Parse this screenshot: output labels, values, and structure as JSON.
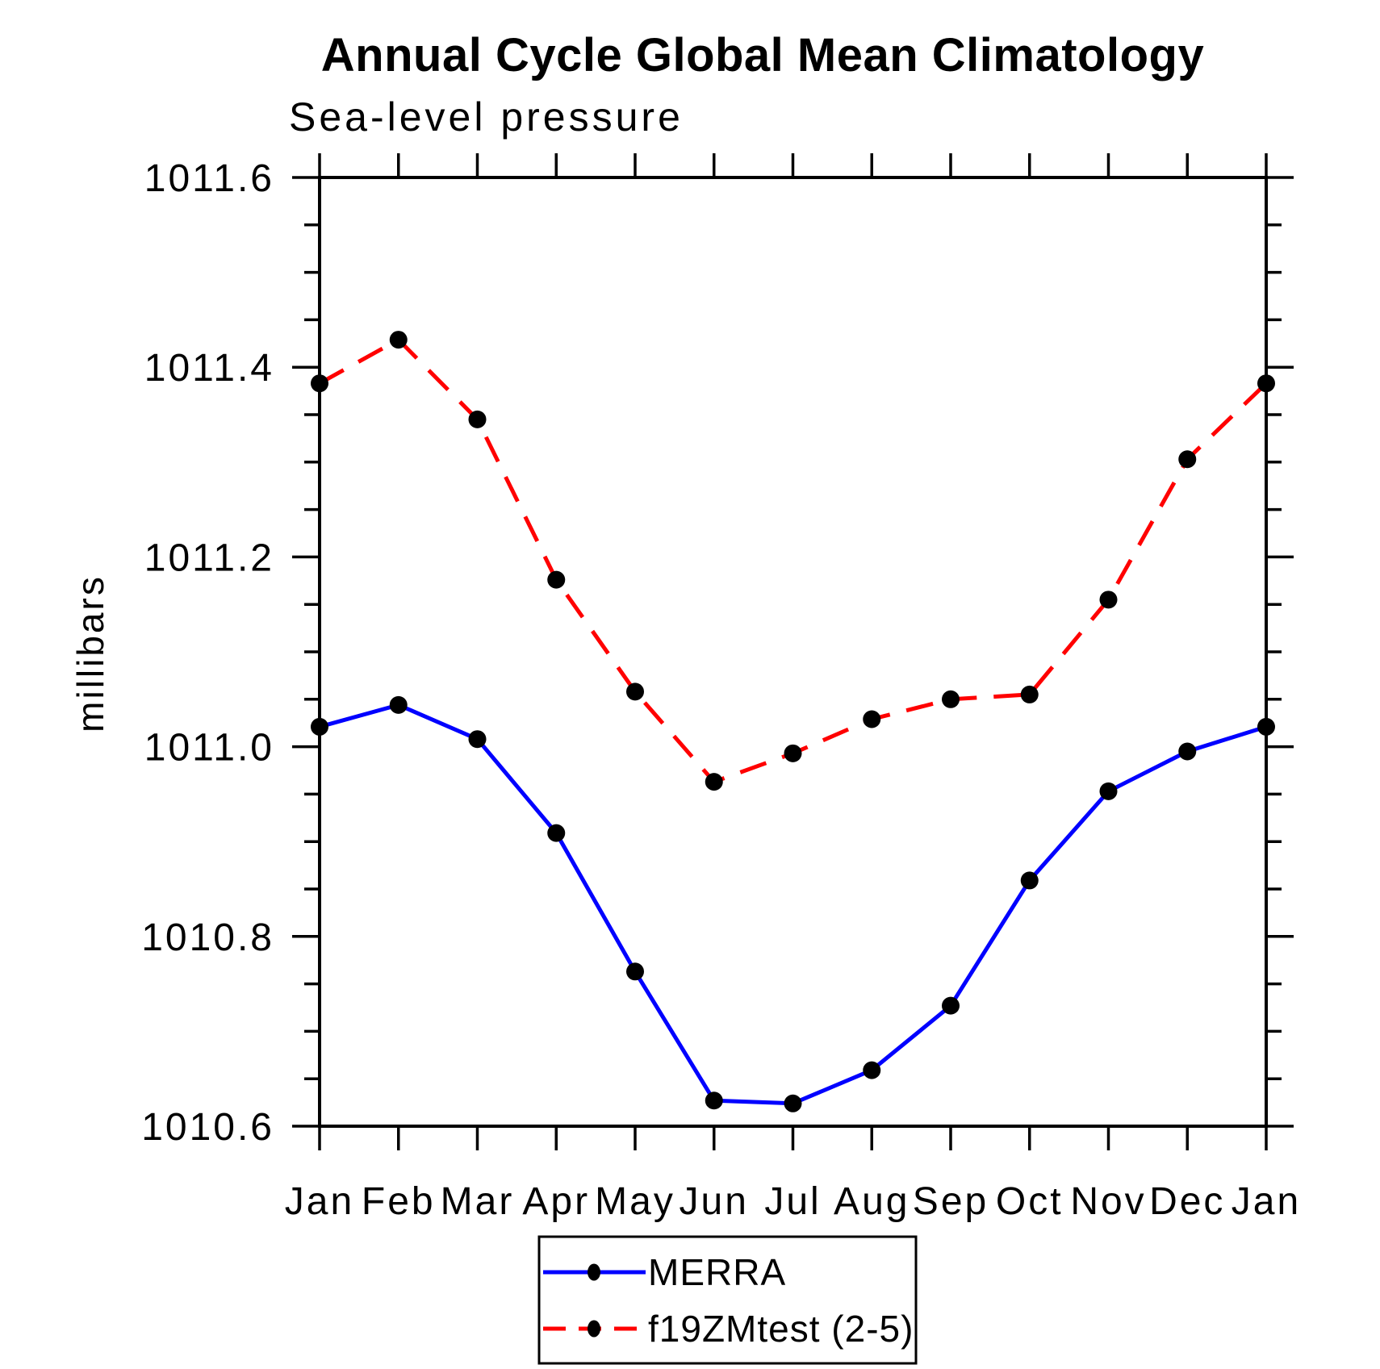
{
  "chart": {
    "title": "Annual Cycle Global Mean Climatology",
    "subtitle": "Sea-level pressure",
    "ylabel": "millibars"
  },
  "legend": {
    "position": "bottom-center",
    "entries": [
      {
        "label": "MERRA",
        "color": "#0000ff",
        "style": "solid",
        "marker": "filled-circle"
      },
      {
        "label": "f19ZMtest (2-5)",
        "color": "#ff0000",
        "style": "dashed",
        "marker": "filled-circle"
      }
    ]
  },
  "chart_data": {
    "type": "line",
    "title": "Annual Cycle Global Mean Climatology",
    "subtitle": "Sea-level pressure",
    "xlabel": "",
    "ylabel": "millibars",
    "categories": [
      "Jan",
      "Feb",
      "Mar",
      "Apr",
      "May",
      "Jun",
      "Jul",
      "Aug",
      "Sep",
      "Oct",
      "Nov",
      "Dec",
      "Jan"
    ],
    "series": [
      {
        "name": "MERRA",
        "color": "#0000ff",
        "line_style": "solid",
        "marker": "filled-circle",
        "marker_color": "#000000",
        "values": [
          1011.021,
          1011.044,
          1011.008,
          1010.909,
          1010.763,
          1010.627,
          1010.624,
          1010.659,
          1010.727,
          1010.859,
          1010.953,
          1010.995,
          1011.021
        ]
      },
      {
        "name": "f19ZMtest (2-5)",
        "color": "#ff0000",
        "line_style": "dashed",
        "marker": "filled-circle",
        "marker_color": "#000000",
        "values": [
          1011.383,
          1011.429,
          1011.345,
          1011.176,
          1011.058,
          1010.963,
          1010.993,
          1011.029,
          1011.05,
          1011.055,
          1011.155,
          1011.303,
          1011.383
        ]
      }
    ],
    "ylim": [
      1010.6,
      1011.6
    ],
    "ytick_major_step": 0.2,
    "ytick_minor_step": 0.05,
    "grid": false,
    "frame": "box",
    "tick_direction": "out",
    "legend_position": "bottom-center"
  }
}
